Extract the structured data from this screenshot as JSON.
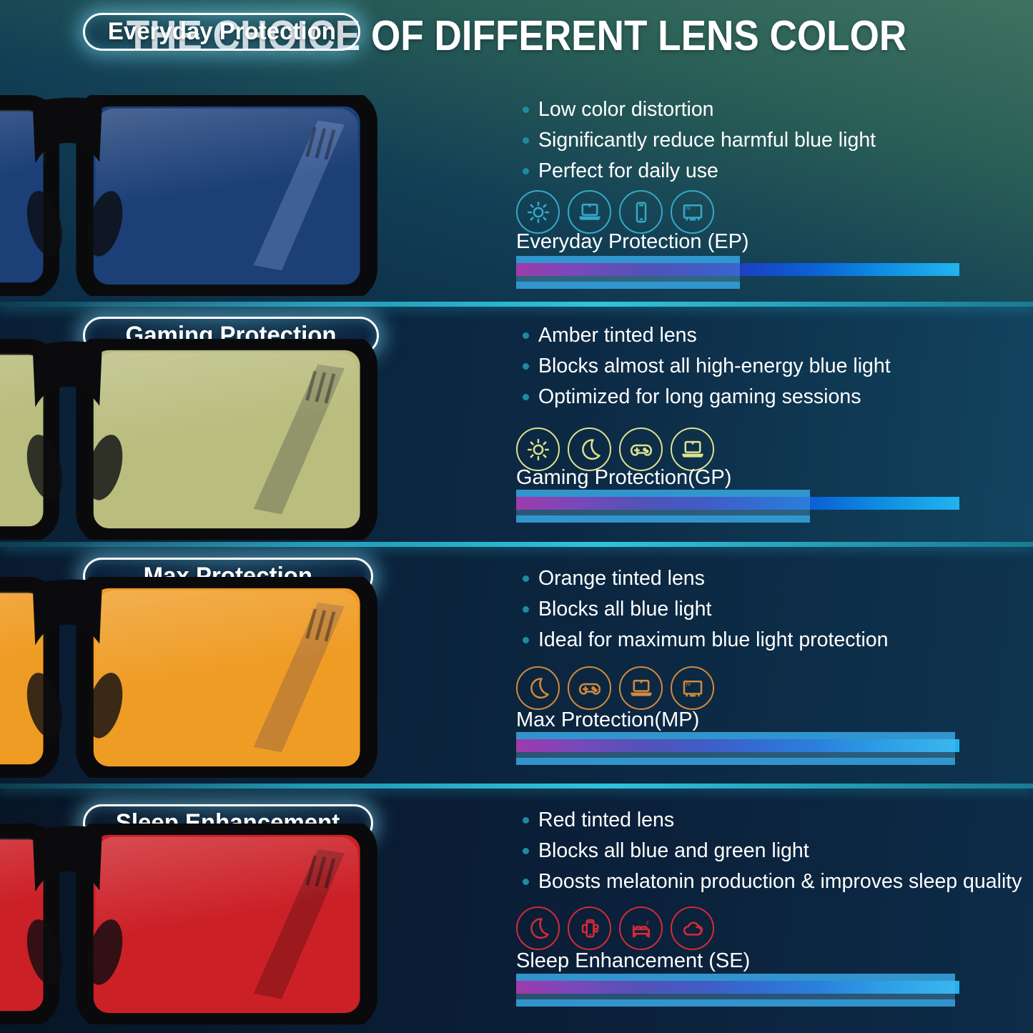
{
  "title": "THE CHOICE OF DIFFERENT LENS COLOR",
  "theme": {
    "background_top": "#3f7260",
    "background_bottom": "#0b203a",
    "divider_color": "#2fc4de",
    "bullet_dot_color": "#1f8ba0",
    "spectrum_gradient": [
      "#b2008f",
      "#2b2fb4",
      "#22b4ee"
    ],
    "blocked_overlay_color": "#349ed8"
  },
  "sections": [
    {
      "pill": "Everyday Protection",
      "bullets": [
        "Low color distortion",
        "Significantly reduce harmful blue light",
        "Perfect for daily use"
      ],
      "icons": [
        "sun",
        "laptop",
        "phone",
        "tv"
      ],
      "spectrum_label": "Everyday Protection (EP)",
      "accent_color": "#35a9c6",
      "lens_color": "#1c3f78",
      "temple_color": "#44639b",
      "blocked_percent": 51
    },
    {
      "pill": "Gaming Protection",
      "bullets": [
        "Amber tinted lens",
        "Blocks almost all high-energy blue light",
        "Optimized for long gaming sessions"
      ],
      "icons": [
        "sun",
        "moon",
        "gamepad",
        "laptop"
      ],
      "spectrum_label": "Gaming Protection(GP)",
      "accent_color": "#dce28e",
      "lens_color": "#b9bd7e",
      "temple_color": "#8d9168",
      "blocked_percent": 67
    },
    {
      "pill": "Max Protection",
      "bullets": [
        "Orange tinted lens",
        "Blocks all blue light",
        "Ideal for maximum blue light protection"
      ],
      "icons": [
        "moon",
        "gamepad",
        "laptop",
        "tv"
      ],
      "spectrum_label": "Max Protection(MP)",
      "accent_color": "#d08a3e",
      "lens_color": "#ef9c25",
      "temple_color": "#c07f35",
      "blocked_percent": 100
    },
    {
      "pill": "Sleep Enhancement",
      "bullets": [
        "Red tinted lens",
        "Blocks all blue and green light",
        "Boosts melatonin production & improves sleep quality"
      ],
      "icons": [
        "moon",
        "phone-mount",
        "bed",
        "cloud"
      ],
      "spectrum_label": "Sleep Enhancement (SE)",
      "accent_color": "#d42b35",
      "lens_color": "#cc2027",
      "temple_color": "#97181e",
      "blocked_percent": 100
    }
  ]
}
